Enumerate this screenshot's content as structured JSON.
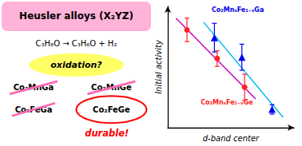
{
  "chart_data": {
    "type": "scatter",
    "title": "Heusler alloys (X₂YZ)",
    "xlabel": "d-band center",
    "ylabel": "Initial activity",
    "xlim": [
      0.3,
      4.9
    ],
    "ylim": [
      -0.35,
      4.3
    ],
    "xticks": [],
    "yticks": [],
    "tick_labels": false,
    "grid": false,
    "series": [
      {
        "type": "line",
        "color": "#cc00bb",
        "x": [
          0.6,
          3.5
        ],
        "values": [
          3.85,
          0.75
        ]
      },
      {
        "type": "line",
        "color": "#00bbee",
        "x": [
          1.6,
          4.5
        ],
        "values": [
          3.7,
          0.05
        ]
      },
      {
        "type": "scatter",
        "name": "Co₂MnₓFe₁₋ₓGe",
        "color": "#ff2222",
        "marker": "circle",
        "x": [
          1.0,
          2.1,
          3.1
        ],
        "values": [
          3.4,
          2.3,
          1.2
        ],
        "errors": [
          0.45,
          0.3,
          0.5
        ]
      },
      {
        "type": "scatter",
        "name": "Co₂MnₓFe₁₋ₓGa",
        "color": "#0000ee",
        "marker": "triangle",
        "x": [
          2.0,
          3.0,
          4.1
        ],
        "values": [
          3.1,
          2.35,
          0.35
        ],
        "errors": [
          0.55,
          0.5,
          0.18
        ]
      }
    ],
    "annotations": [
      "C₃H₈O → C₃H₆O + H₂",
      "oxidation?",
      "Co₂MnGa",
      "Co₂MnGe",
      "Co₂FeGa",
      {
        "text": "Co₂FeGe",
        "color": "#ff0000"
      },
      {
        "text": "durable!",
        "color": "#ff0000"
      }
    ]
  }
}
